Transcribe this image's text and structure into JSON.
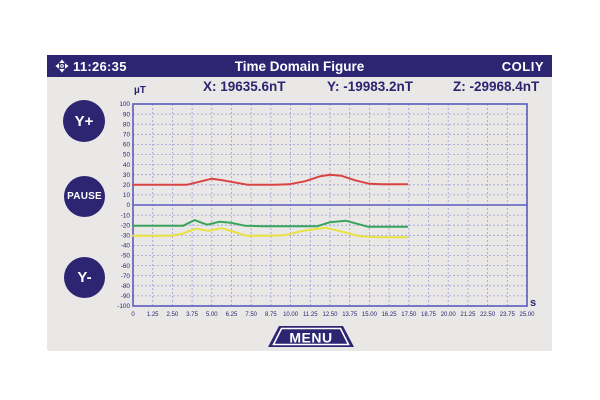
{
  "titlebar": {
    "time": "11:26:35",
    "title": "Time Domain Figure",
    "brand": "COLIY"
  },
  "readings": {
    "x": "X: 19635.6nT",
    "y": "Y: -19983.2nT",
    "z": "Z: -29968.4nT"
  },
  "buttons": {
    "y_plus": "Y+",
    "pause": "PAUSE",
    "y_minus": "Y-",
    "menu": "MENU"
  },
  "colors": {
    "navy": "#2d2472",
    "panel_gray": "#e9e8e6",
    "grid_blue": "#9e9ed6",
    "frame_blue": "#5b5bc0",
    "series_x_red": "#d94343",
    "series_y_green": "#37a35b",
    "series_z_yellow": "#e8e23e"
  },
  "chart_data": {
    "type": "line",
    "title": "Time Domain Figure",
    "ylabel": "µT",
    "xlabel": "s",
    "xlim": [
      0,
      25
    ],
    "ylim": [
      -100,
      100
    ],
    "grid": true,
    "legend": "none",
    "y_ticks": [
      100,
      90,
      80,
      70,
      60,
      50,
      40,
      30,
      20,
      10,
      0,
      -10,
      -20,
      -30,
      -40,
      -50,
      -60,
      -70,
      -80,
      -90,
      -100
    ],
    "x_ticks": [
      "0",
      "1.25",
      "2.50",
      "3.75",
      "5.00",
      "6.25",
      "7.50",
      "8.75",
      "10.00",
      "11.25",
      "12.50",
      "13.75",
      "15.00",
      "16.25",
      "17.50",
      "18.75",
      "20.00",
      "21.25",
      "22.50",
      "23.75",
      "25.00"
    ],
    "data_end_time_s": 17.5,
    "series": [
      {
        "name": "X",
        "color": "#d94343",
        "points": [
          [
            0,
            20
          ],
          [
            1.25,
            20
          ],
          [
            2.5,
            20
          ],
          [
            3.4,
            20
          ],
          [
            4.2,
            23
          ],
          [
            5.0,
            26
          ],
          [
            5.7,
            24.5
          ],
          [
            6.4,
            22.5
          ],
          [
            7.3,
            20
          ],
          [
            8.2,
            20
          ],
          [
            9.0,
            20
          ],
          [
            9.9,
            20.5
          ],
          [
            10.9,
            23.5
          ],
          [
            11.9,
            28.5
          ],
          [
            12.5,
            30
          ],
          [
            13.2,
            29
          ],
          [
            14.1,
            24.5
          ],
          [
            15.0,
            21
          ],
          [
            15.9,
            20.5
          ],
          [
            17.4,
            20.5
          ]
        ]
      },
      {
        "name": "Y",
        "color": "#37a35b",
        "points": [
          [
            0,
            -20.5
          ],
          [
            1.25,
            -20.5
          ],
          [
            2.5,
            -20.5
          ],
          [
            3.2,
            -20.5
          ],
          [
            3.9,
            -15
          ],
          [
            4.7,
            -19.5
          ],
          [
            5.5,
            -16.5
          ],
          [
            6.2,
            -17.5
          ],
          [
            7.1,
            -20.5
          ],
          [
            8.2,
            -21
          ],
          [
            9.4,
            -21
          ],
          [
            10.6,
            -21
          ],
          [
            11.7,
            -21
          ],
          [
            12.5,
            -17
          ],
          [
            13.5,
            -15.5
          ],
          [
            14.9,
            -21.5
          ],
          [
            16.2,
            -21.5
          ],
          [
            17.4,
            -21.5
          ]
        ]
      },
      {
        "name": "Z",
        "color": "#e8e23e",
        "points": [
          [
            0,
            -30.5
          ],
          [
            1.25,
            -30.5
          ],
          [
            2.4,
            -30.5
          ],
          [
            3.1,
            -28.5
          ],
          [
            4.0,
            -23.5
          ],
          [
            4.8,
            -25.5
          ],
          [
            5.6,
            -23
          ],
          [
            6.4,
            -26.5
          ],
          [
            7.2,
            -30.5
          ],
          [
            8.4,
            -30.5
          ],
          [
            9.6,
            -30
          ],
          [
            10.8,
            -25.5
          ],
          [
            12.2,
            -22.5
          ],
          [
            13.3,
            -26.5
          ],
          [
            14.4,
            -31
          ],
          [
            15.6,
            -32
          ],
          [
            17.4,
            -32
          ]
        ]
      }
    ]
  }
}
